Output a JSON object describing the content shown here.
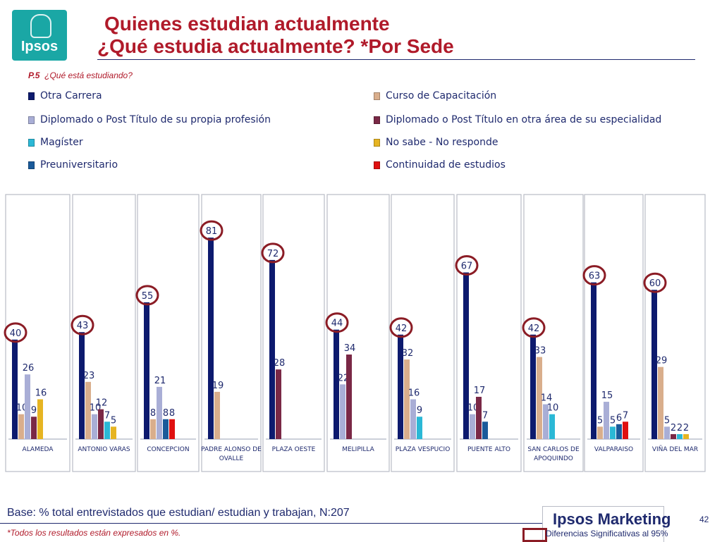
{
  "header": {
    "logo_text": "Ipsos",
    "title_line1": "Quienes estudian actualmente",
    "title_line2": "¿Qué estudia actualmente? *Por Sede",
    "question_code": "P.5",
    "question_text": "¿Qué está estudiando?"
  },
  "colors": {
    "otra_carrera": "#0d1a6e",
    "curso": "#d9ae8c",
    "diplomado_propia": "#a9aed6",
    "diplomado_otra": "#7a2846",
    "magister": "#2bb8d6",
    "no_sabe": "#e6b422",
    "preuniversitario": "#1a5a9a",
    "continuidad": "#e01010",
    "circle": "#8b1c25",
    "label": "#1f2a6e"
  },
  "chart_data": {
    "type": "bar",
    "ylim": [
      0,
      85
    ],
    "legend_position": "top",
    "series": [
      {
        "name": "Otra Carrera",
        "key": "otra_carrera"
      },
      {
        "name": "Curso de Capacitación",
        "key": "curso"
      },
      {
        "name": "Diplomado o Post Título de su propia profesión",
        "key": "diplomado_propia"
      },
      {
        "name": "Diplomado o Post Título en otra área de su especialidad",
        "key": "diplomado_otra"
      },
      {
        "name": "Magíster",
        "key": "magister"
      },
      {
        "name": "No sabe - No responde",
        "key": "no_sabe"
      },
      {
        "name": "Preuniversitario",
        "key": "preuniversitario"
      },
      {
        "name": "Continuidad de estudios",
        "key": "continuidad"
      }
    ],
    "groups": [
      {
        "name": "ALAMEDA",
        "bars": [
          {
            "s": "otra_carrera",
            "v": 40,
            "circled": true
          },
          {
            "s": "curso",
            "v": 10
          },
          {
            "s": "diplomado_propia",
            "v": 26
          },
          {
            "s": "diplomado_otra",
            "v": 9
          },
          {
            "s": "no_sabe",
            "v": 16
          }
        ]
      },
      {
        "name": "ANTONIO VARAS",
        "bars": [
          {
            "s": "otra_carrera",
            "v": 43,
            "circled": true
          },
          {
            "s": "curso",
            "v": 23
          },
          {
            "s": "diplomado_propia",
            "v": 10
          },
          {
            "s": "diplomado_otra",
            "v": 12
          },
          {
            "s": "magister",
            "v": 7
          },
          {
            "s": "no_sabe",
            "v": 5
          }
        ]
      },
      {
        "name": "CONCEPCION",
        "bars": [
          {
            "s": "otra_carrera",
            "v": 55,
            "circled": true
          },
          {
            "s": "curso",
            "v": 8
          },
          {
            "s": "diplomado_propia",
            "v": 21
          },
          {
            "s": "preuniversitario",
            "v": 8
          },
          {
            "s": "continuidad",
            "v": 8
          }
        ]
      },
      {
        "name": "PADRE ALONSO DE OVALLE",
        "bars": [
          {
            "s": "otra_carrera",
            "v": 81,
            "circled": true
          },
          {
            "s": "curso",
            "v": 19
          }
        ]
      },
      {
        "name": "PLAZA OESTE",
        "bars": [
          {
            "s": "otra_carrera",
            "v": 72,
            "circled": true
          },
          {
            "s": "diplomado_otra",
            "v": 28
          }
        ]
      },
      {
        "name": "MELIPILLA",
        "bars": [
          {
            "s": "otra_carrera",
            "v": 44,
            "circled": true
          },
          {
            "s": "diplomado_propia",
            "v": 22
          },
          {
            "s": "diplomado_otra",
            "v": 34
          }
        ]
      },
      {
        "name": "PLAZA VESPUCIO",
        "bars": [
          {
            "s": "otra_carrera",
            "v": 42,
            "circled": true
          },
          {
            "s": "curso",
            "v": 32
          },
          {
            "s": "diplomado_propia",
            "v": 16
          },
          {
            "s": "magister",
            "v": 9
          }
        ]
      },
      {
        "name": "PUENTE ALTO",
        "bars": [
          {
            "s": "otra_carrera",
            "v": 67,
            "circled": true
          },
          {
            "s": "diplomado_propia",
            "v": 10
          },
          {
            "s": "diplomado_otra",
            "v": 17
          },
          {
            "s": "preuniversitario",
            "v": 7
          }
        ]
      },
      {
        "name": "SAN CARLOS DE APOQUINDO",
        "bars": [
          {
            "s": "otra_carrera",
            "v": 42,
            "circled": true
          },
          {
            "s": "curso",
            "v": 33
          },
          {
            "s": "diplomado_propia",
            "v": 14
          },
          {
            "s": "magister",
            "v": 10
          }
        ]
      },
      {
        "name": "VALPARAISO",
        "bars": [
          {
            "s": "otra_carrera",
            "v": 63,
            "circled": true
          },
          {
            "s": "curso",
            "v": 5
          },
          {
            "s": "diplomado_propia",
            "v": 15
          },
          {
            "s": "magister",
            "v": 5
          },
          {
            "s": "preuniversitario",
            "v": 6
          },
          {
            "s": "continuidad",
            "v": 7
          }
        ]
      },
      {
        "name": "VIÑA DEL MAR",
        "bars": [
          {
            "s": "otra_carrera",
            "v": 60,
            "circled": true
          },
          {
            "s": "curso",
            "v": 29
          },
          {
            "s": "diplomado_propia",
            "v": 5
          },
          {
            "s": "diplomado_otra",
            "v": 2
          },
          {
            "s": "magister",
            "v": 2
          },
          {
            "s": "no_sabe",
            "v": 2
          }
        ]
      }
    ]
  },
  "footer": {
    "base_text": "Base: % total entrevistados que estudian/ estudian y trabajan, N:207",
    "note_text": "*Todos los resultados están expresados en %.",
    "brand_text": "Ipsos Marketing",
    "page_number": "42",
    "significance_text": "Diferencias Significativas al 95%"
  }
}
